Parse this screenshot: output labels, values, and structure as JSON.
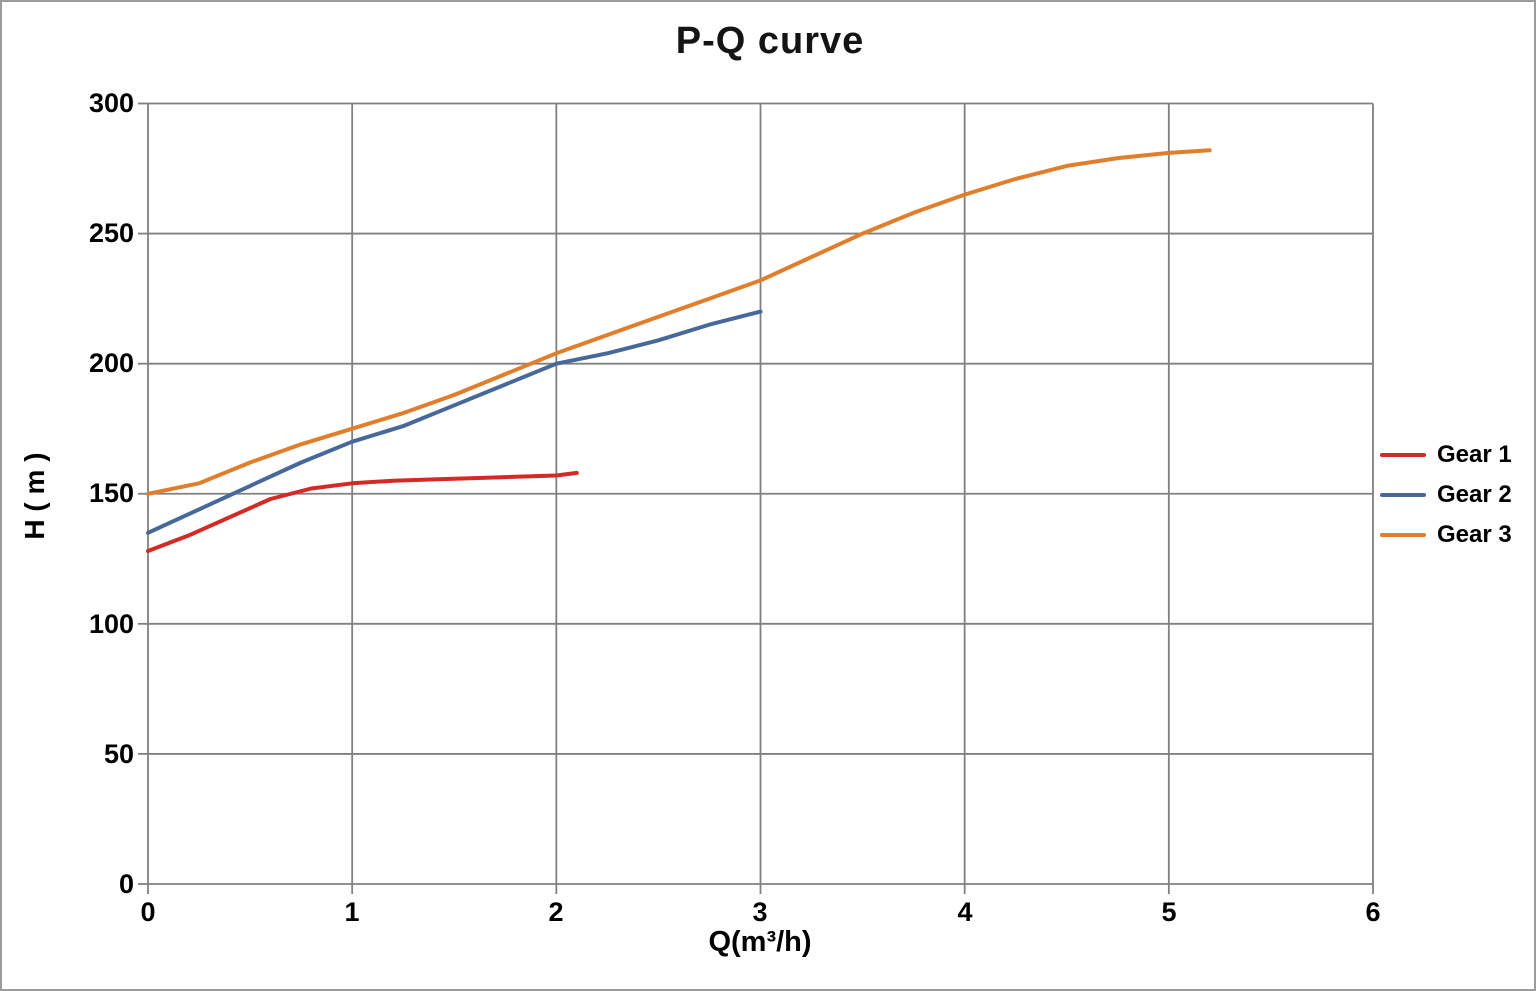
{
  "window": {
    "background": "#ffffff",
    "border_color": "#9b9b9b"
  },
  "chart_data": {
    "type": "line",
    "title": "P-Q  curve",
    "xlabel": "Q(m³/h)",
    "ylabel": "H ( m )",
    "xlim": [
      0,
      6
    ],
    "ylim": [
      0,
      300
    ],
    "x_ticks": [
      "0",
      "1",
      "2",
      "3",
      "4",
      "5",
      "6"
    ],
    "y_ticks_top_to_bottom": [
      "300",
      "250",
      "200",
      "150",
      "100",
      "50",
      "0"
    ],
    "grid": true,
    "gridline_color": "#808080",
    "tick_text_color": "#000000",
    "legend_position": "right-middle",
    "series": [
      {
        "name": "Gear 1",
        "color": "#d42a25",
        "points": [
          [
            0,
            128
          ],
          [
            0.2,
            134
          ],
          [
            0.4,
            141
          ],
          [
            0.6,
            148
          ],
          [
            0.8,
            152
          ],
          [
            1.0,
            154
          ],
          [
            1.2,
            155
          ],
          [
            1.4,
            155.5
          ],
          [
            1.6,
            156
          ],
          [
            1.8,
            156.5
          ],
          [
            2.0,
            157
          ],
          [
            2.1,
            158
          ]
        ]
      },
      {
        "name": "Gear 2",
        "color": "#47699a",
        "points": [
          [
            0,
            135
          ],
          [
            0.25,
            144
          ],
          [
            0.5,
            153
          ],
          [
            0.75,
            162
          ],
          [
            1.0,
            170
          ],
          [
            1.25,
            176
          ],
          [
            1.5,
            184
          ],
          [
            1.75,
            192
          ],
          [
            2.0,
            200
          ],
          [
            2.25,
            204
          ],
          [
            2.5,
            209
          ],
          [
            2.75,
            215
          ],
          [
            3.0,
            220
          ]
        ]
      },
      {
        "name": "Gear 3",
        "color": "#e07e2b",
        "points": [
          [
            0,
            150
          ],
          [
            0.25,
            154
          ],
          [
            0.5,
            162
          ],
          [
            0.75,
            169
          ],
          [
            1.0,
            175
          ],
          [
            1.25,
            181
          ],
          [
            1.5,
            188
          ],
          [
            1.75,
            196
          ],
          [
            2.0,
            204
          ],
          [
            2.25,
            211
          ],
          [
            2.5,
            218
          ],
          [
            2.75,
            225
          ],
          [
            3.0,
            232
          ],
          [
            3.25,
            241
          ],
          [
            3.5,
            250
          ],
          [
            3.75,
            258
          ],
          [
            4.0,
            265
          ],
          [
            4.25,
            271
          ],
          [
            4.5,
            276
          ],
          [
            4.75,
            279
          ],
          [
            5.0,
            281
          ],
          [
            5.2,
            282
          ]
        ]
      }
    ]
  }
}
